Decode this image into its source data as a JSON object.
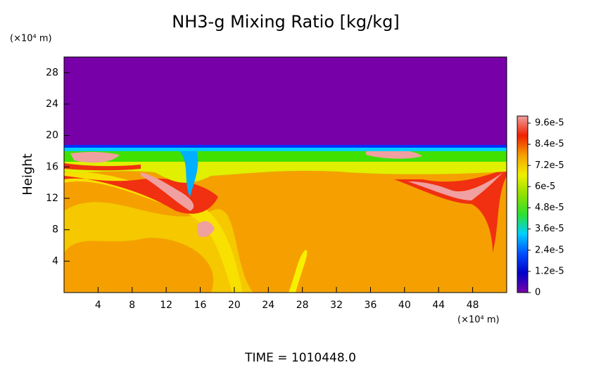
{
  "chart_data": {
    "type": "heatmap",
    "title": "NH3-g Mixing Ratio [kg/kg]",
    "ylabel": "Height",
    "y_unit": "(×10⁴ m)",
    "x_unit": "(×10⁴ m)",
    "footer": "TIME = 1010448.0",
    "xlim": [
      0,
      52
    ],
    "xticks": [
      4,
      8,
      12,
      16,
      20,
      24,
      28,
      32,
      36,
      40,
      44,
      48
    ],
    "ylim": [
      0,
      30
    ],
    "yticks": [
      4,
      8,
      12,
      16,
      20,
      24,
      28
    ],
    "clim": [
      0,
      0.0001
    ],
    "cticks": [
      0,
      {
        "value": 1.2e-05,
        "label": "1.2e-5"
      },
      {
        "value": 2.4e-05,
        "label": "2.4e-5"
      },
      {
        "value": 3.6e-05,
        "label": "3.6e-5"
      },
      {
        "value": 4.8e-05,
        "label": "4.8e-5"
      },
      {
        "value": 6e-05,
        "label": "6e-5"
      },
      {
        "value": 7.2e-05,
        "label": "7.2e-5"
      },
      {
        "value": 8.4e-05,
        "label": "8.4e-5"
      },
      {
        "value": 9.6e-05,
        "label": "9.6e-5"
      }
    ],
    "colormap": [
      "#7800a8",
      "#0000c8",
      "#0050ff",
      "#00d0ff",
      "#30e030",
      "#90e000",
      "#f0f000",
      "#f5a000",
      "#f02000",
      "#f0a0a0"
    ]
  }
}
